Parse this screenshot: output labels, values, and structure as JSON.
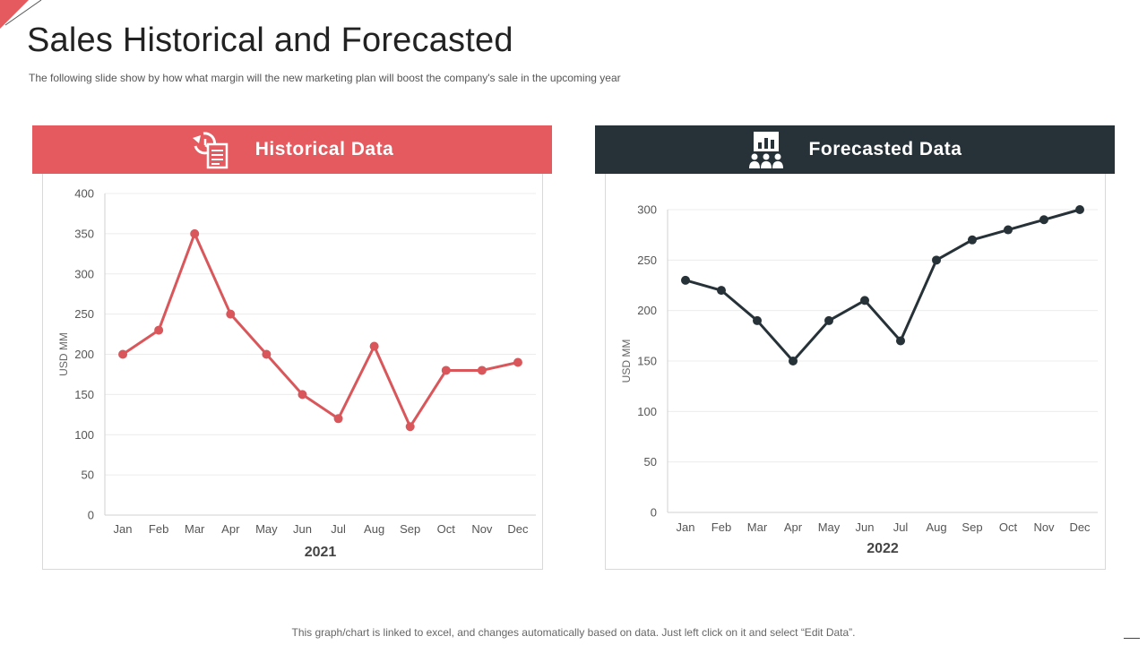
{
  "page": {
    "title": "Sales Historical and Forecasted",
    "subtitle": "The following slide show by how what margin will the new marketing plan will boost the company's sale in the upcoming year",
    "footer": "This graph/chart is linked to excel,  and changes automatically based on data. Just left click on it and select “Edit Data”."
  },
  "panels": {
    "historical": {
      "label": "Historical Data",
      "icon": "history-document-icon",
      "color": "#e55a5f"
    },
    "forecasted": {
      "label": "Forecasted Data",
      "icon": "presentation-audience-icon",
      "color": "#263238"
    }
  },
  "chart_data": [
    {
      "type": "line",
      "title": "Historical Data",
      "xlabel": "2021",
      "ylabel": "USD MM",
      "categories": [
        "Jan",
        "Feb",
        "Mar",
        "Apr",
        "May",
        "Jun",
        "Jul",
        "Aug",
        "Sep",
        "Oct",
        "Nov",
        "Dec"
      ],
      "series": [
        {
          "name": "2021",
          "values": [
            200,
            230,
            350,
            250,
            200,
            150,
            120,
            210,
            110,
            180,
            180,
            190
          ],
          "color": "#d9575b"
        }
      ],
      "ylim": [
        0,
        400
      ],
      "yticks": [
        0,
        50,
        100,
        150,
        200,
        250,
        300,
        350,
        400
      ],
      "grid": true
    },
    {
      "type": "line",
      "title": "Forecasted Data",
      "xlabel": "2022",
      "ylabel": "USD MM",
      "categories": [
        "Jan",
        "Feb",
        "Mar",
        "Apr",
        "May",
        "Jun",
        "Jul",
        "Aug",
        "Sep",
        "Oct",
        "Nov",
        "Dec"
      ],
      "series": [
        {
          "name": "2022",
          "values": [
            230,
            220,
            190,
            150,
            190,
            210,
            170,
            250,
            270,
            280,
            290,
            300
          ],
          "color": "#263238"
        }
      ],
      "ylim": [
        0,
        300
      ],
      "yticks": [
        0,
        50,
        100,
        150,
        200,
        250,
        300
      ],
      "grid": true
    }
  ]
}
